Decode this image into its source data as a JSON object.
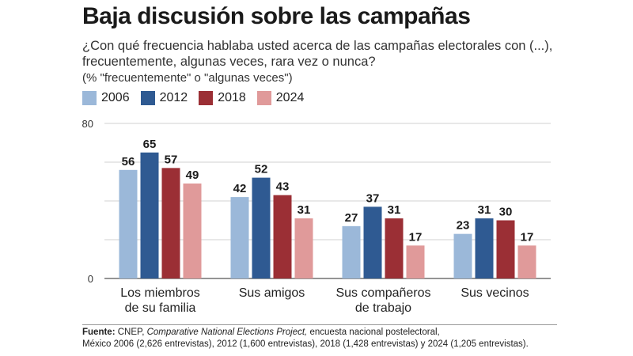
{
  "title": "Baja discusión sobre las campañas",
  "subtitle": "¿Con qué frecuencia hablaba usted acerca de las campañas electorales con (...), frecuentemente, algunas veces, rara vez o nunca?",
  "note": "(% \"frecuentemente\" o \"algunas veces\")",
  "footer": {
    "label": "Fuente:",
    "source_a": "CNEP,",
    "source_italic": "Comparative National Elections Project,",
    "source_b": "encuesta nacional postelectoral,",
    "line2": "México 2006 (2,626 entrevistas), 2012 (1,600 entrevistas), 2018 (1,428 entrevistas) y 2024 (1,205 entrevistas)."
  },
  "chart_data": {
    "type": "bar",
    "title": "Baja discusión sobre las campañas",
    "categories": [
      [
        "Los miembros",
        "de su familia"
      ],
      [
        "Sus amigos"
      ],
      [
        "Sus compañeros",
        "de trabajo"
      ],
      [
        "Sus vecinos"
      ]
    ],
    "series": [
      {
        "name": "2006",
        "color": "#9bb8d9",
        "values": [
          56,
          42,
          27,
          23
        ]
      },
      {
        "name": "2012",
        "color": "#2f5a92",
        "values": [
          65,
          52,
          37,
          31
        ]
      },
      {
        "name": "2018",
        "color": "#9b2f35",
        "values": [
          57,
          43,
          31,
          30
        ]
      },
      {
        "name": "2024",
        "color": "#e09a9a",
        "values": [
          49,
          31,
          17,
          17
        ]
      }
    ],
    "ylim": [
      0,
      80
    ],
    "yticks": [
      0,
      80
    ],
    "gridlines": [
      0,
      20,
      40,
      60,
      80
    ],
    "legend_position": "top-left"
  }
}
